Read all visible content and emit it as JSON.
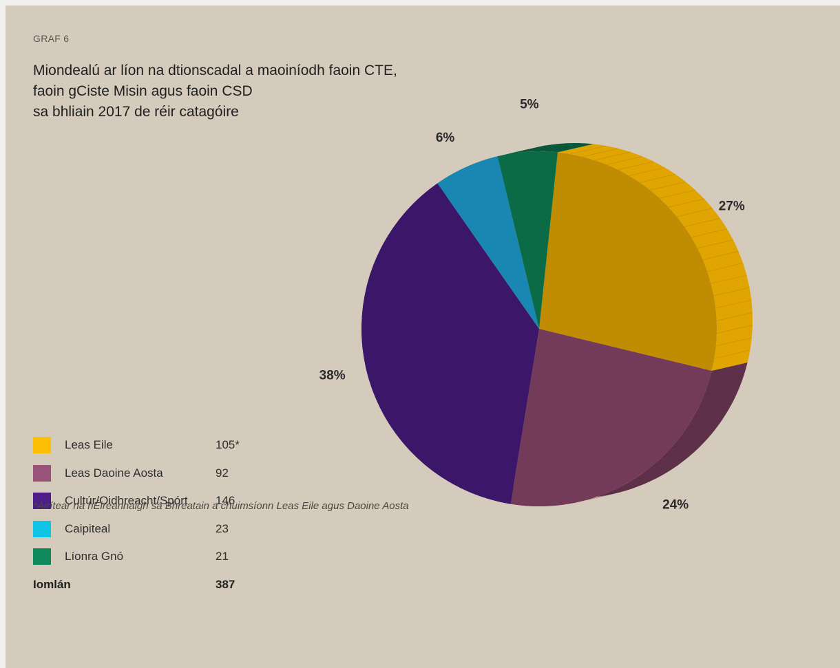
{
  "graf_label": "GRAF 6",
  "title_lines": [
    "Miondealú ar líon na dtionscadal a maoiníodh faoin CTE,",
    "faoin gCiste Misin agus faoin CSD",
    "sa bhliain 2017 de réir catagóire"
  ],
  "chart_data": {
    "type": "pie",
    "title": "Miondealú ar líon na dtionscadal a maoiníodh faoin CTE, faoin gCiste Misin agus faoin CSD sa bhliain 2017 de réir catagóire",
    "categories": [
      "Leas Eile",
      "Leas Daoine Aosta",
      "Cultúr/Oidhreacht/Spórt",
      "Caipiteal",
      "Líonra Gnó"
    ],
    "values": [
      105,
      92,
      146,
      23,
      21
    ],
    "value_labels": [
      "105*",
      "92",
      "146",
      "23",
      "21"
    ],
    "percent_labels": [
      "27%",
      "24%",
      "38%",
      "6%",
      "5%"
    ],
    "colors": [
      "#bf8c02",
      "#743a59",
      "#3c1769",
      "#1a87b2",
      "#0b6b47"
    ],
    "legend_colors": [
      "#fdbf05",
      "#995378",
      "#4d1e8a",
      "#0fc4e4",
      "#0f8a5c"
    ],
    "total_label": "Iomlán",
    "total_value": "387",
    "legend_position": "bottom-left"
  },
  "footnote": "*Áirítear na hÉireannaigh sa Bhreatain a chuimsíonn Leas Eile agus Daoine Aosta"
}
